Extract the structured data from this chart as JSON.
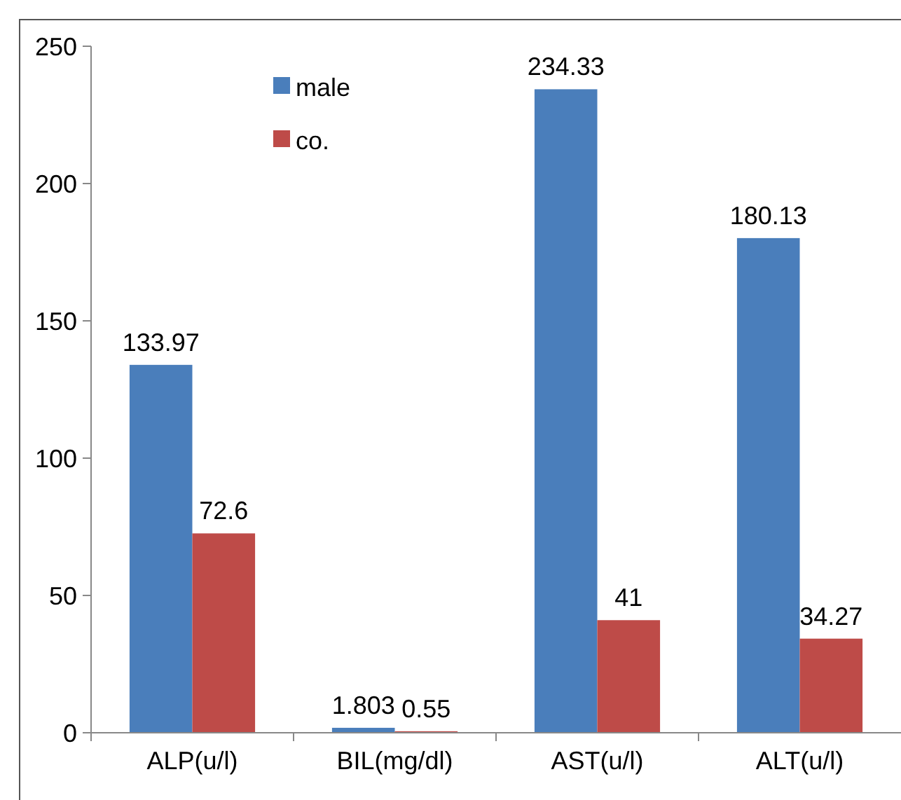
{
  "chart_data": {
    "type": "bar",
    "categories": [
      "ALP(u/l)",
      "BIL(mg/dl)",
      "AST(u/l)",
      "ALT(u/l)"
    ],
    "series": [
      {
        "name": "male",
        "color": "#4a7ebb",
        "values": [
          133.97,
          1.803,
          234.33,
          180.13
        ]
      },
      {
        "name": "co.",
        "color": "#be4b48",
        "values": [
          72.6,
          0.55,
          41,
          34.27
        ]
      }
    ],
    "ylim": [
      0,
      250
    ],
    "yticks": [
      0,
      50,
      100,
      150,
      200,
      250
    ],
    "grid": false,
    "legend": "top left",
    "data_labels": true
  }
}
